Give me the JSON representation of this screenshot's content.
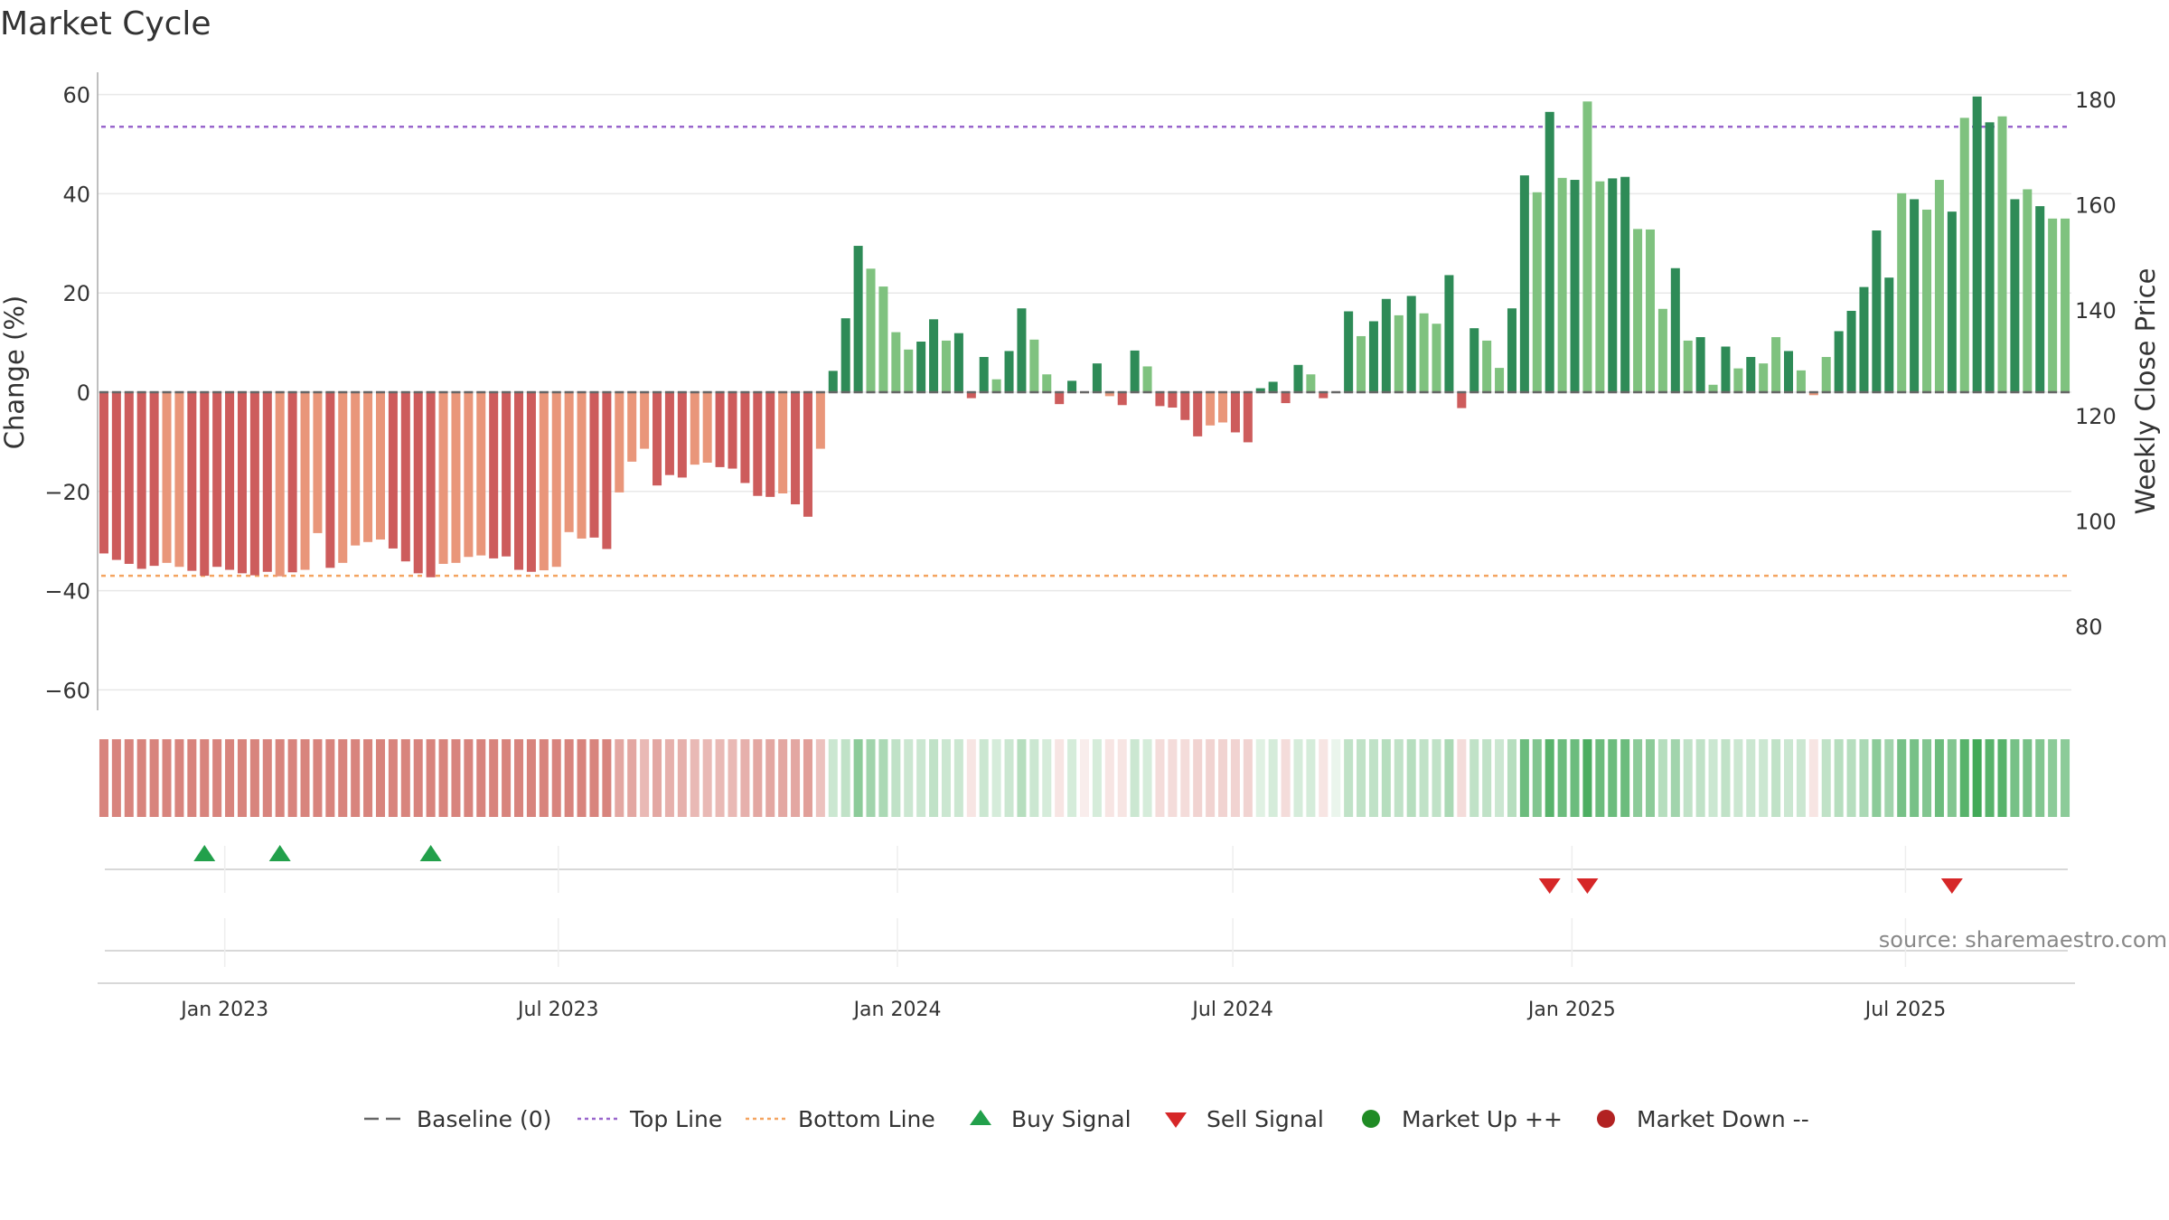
{
  "title": "Market Cycle",
  "source": "source: sharemaestro.com",
  "colors": {
    "pos_dark": "#2e8b57",
    "pos_light": "#7fc27f",
    "neg_dark": "#cd5c5c",
    "neg_light": "#e9967a",
    "top_line": "#9966cc",
    "bottom_line": "#f4a460",
    "baseline": "#666666",
    "buy": "#22a04b",
    "sell": "#d62728",
    "market_up": "#1f8b24",
    "market_down": "#b22222",
    "grid": "#e8e8e8",
    "axis": "#aaaaaa"
  },
  "legend": [
    {
      "key": "baseline",
      "label": "Baseline (0)",
      "icon": "dash-line-icon"
    },
    {
      "key": "top",
      "label": "Top Line",
      "icon": "dotted-purple-line-icon"
    },
    {
      "key": "bottom",
      "label": "Bottom Line",
      "icon": "dotted-orange-line-icon"
    },
    {
      "key": "buy",
      "label": "Buy Signal",
      "icon": "triangle-up-icon"
    },
    {
      "key": "sell",
      "label": "Sell Signal",
      "icon": "triangle-down-icon"
    },
    {
      "key": "up",
      "label": "Market Up ++",
      "icon": "green-dot-icon"
    },
    {
      "key": "down",
      "label": "Market Down --",
      "icon": "red-dot-icon"
    }
  ],
  "chart_data": {
    "type": "bar",
    "title": "Market Cycle",
    "ylabel": "Change (%)",
    "y2label": "Weekly Close Price",
    "ylim": [
      -60,
      60
    ],
    "yticks": [
      60,
      40,
      20,
      0,
      -20,
      -40,
      -60
    ],
    "yticklabels": [
      "60",
      "40",
      "20",
      "0",
      "−20",
      "−40",
      "−60"
    ],
    "y2lim": [
      70,
      180
    ],
    "y2ticks": [
      180,
      160,
      140,
      120,
      100,
      80
    ],
    "y2ticklabels": [
      "180",
      "160",
      "140",
      "120",
      "100",
      "80"
    ],
    "top_line": 53.5,
    "bottom_line": -37,
    "x_start": "2022-10-24",
    "week_days": 7,
    "xlim": [
      "2022-10-24",
      "2025-09-29"
    ],
    "xticks": [
      "2023-01-01",
      "2023-07-01",
      "2024-01-01",
      "2024-07-01",
      "2025-01-01",
      "2025-07-01"
    ],
    "xticklabels": [
      "Jan 2023",
      "Jul 2023",
      "Jan 2024",
      "Jul 2024",
      "Jan 2025",
      "Jul 2025"
    ],
    "grid": true,
    "legend_position": "bottom",
    "values": [
      -32.5,
      -33.8,
      -34.6,
      -35.6,
      -35,
      -34.4,
      -35.2,
      -36,
      -37,
      -35.2,
      -35.8,
      -36.5,
      -36.9,
      -36.2,
      -37.1,
      -36.3,
      -35.8,
      -28.4,
      -35.4,
      -34.4,
      -30.9,
      -30.2,
      -29.7,
      -31.5,
      -34.1,
      -36.5,
      -37.3,
      -34.6,
      -34.4,
      -33.2,
      -32.9,
      -33.5,
      -33.1,
      -35.8,
      -36.2,
      -35.9,
      -35.2,
      -28.2,
      -29.5,
      -29.3,
      -31.6,
      -20.2,
      -14,
      -11.4,
      -18.8,
      -16.7,
      -17.2,
      -14.6,
      -14.2,
      -15.1,
      -15.4,
      -18.3,
      -20.9,
      -21.1,
      -20.4,
      -22.6,
      -25.1,
      -11.4,
      4.3,
      14.9,
      29.5,
      24.9,
      21.3,
      12.1,
      8.6,
      10.2,
      14.7,
      10.4,
      11.9,
      -1.2,
      7.1,
      2.6,
      8.3,
      16.9,
      10.6,
      3.6,
      -2.4,
      2.3,
      -0.2,
      5.8,
      -0.8,
      -2.6,
      8.4,
      5.2,
      -2.8,
      -3.1,
      -5.6,
      -8.9,
      -6.7,
      -6.1,
      -8.1,
      -10.1,
      0.8,
      2.1,
      -2.2,
      5.5,
      3.6,
      -1.2,
      0,
      16.3,
      11.3,
      14.3,
      18.8,
      15.5,
      19.4,
      15.9,
      13.8,
      23.6,
      -3.2,
      12.9,
      10.4,
      4.9,
      16.9,
      43.7,
      40.3,
      56.5,
      43.2,
      42.8,
      58.6,
      42.5,
      43.1,
      43.4,
      32.9,
      32.8,
      16.8,
      25,
      10.4,
      11.1,
      1.5,
      9.2,
      4.8,
      7.1,
      5.8,
      11.1,
      8.3,
      4.4,
      -0.6,
      7.1,
      12.3,
      16.4,
      21.2,
      32.6,
      23.1,
      40.1,
      38.9,
      36.8,
      42.8,
      36.4,
      55.3,
      59.6,
      54.4,
      55.6,
      38.9,
      40.9,
      37.5,
      35,
      35
    ],
    "shade": [
      "d",
      "d",
      "d",
      "d",
      "d",
      "l",
      "l",
      "d",
      "d",
      "d",
      "d",
      "d",
      "d",
      "d",
      "l",
      "d",
      "l",
      "l",
      "d",
      "l",
      "l",
      "l",
      "l",
      "d",
      "d",
      "d",
      "d",
      "l",
      "l",
      "l",
      "l",
      "d",
      "d",
      "d",
      "d",
      "l",
      "l",
      "l",
      "l",
      "d",
      "d",
      "l",
      "l",
      "l",
      "d",
      "d",
      "d",
      "l",
      "l",
      "d",
      "d",
      "d",
      "d",
      "d",
      "l",
      "d",
      "d",
      "l",
      "d",
      "d",
      "d",
      "l",
      "l",
      "l",
      "l",
      "d",
      "d",
      "l",
      "d",
      "d",
      "d",
      "l",
      "d",
      "d",
      "l",
      "l",
      "d",
      "d",
      "l",
      "d",
      "l",
      "d",
      "d",
      "l",
      "d",
      "d",
      "d",
      "d",
      "l",
      "l",
      "d",
      "d",
      "d",
      "d",
      "d",
      "d",
      "l",
      "d",
      "d",
      "d",
      "l",
      "d",
      "d",
      "l",
      "d",
      "l",
      "l",
      "d",
      "d",
      "d",
      "l",
      "l",
      "d",
      "d",
      "l",
      "d",
      "l",
      "d",
      "l",
      "l",
      "d",
      "d",
      "l",
      "l",
      "l",
      "d",
      "l",
      "d",
      "l",
      "d",
      "l",
      "d",
      "l",
      "l",
      "d",
      "l",
      "l",
      "l",
      "d",
      "d",
      "d",
      "d",
      "d",
      "l",
      "d",
      "l",
      "l",
      "d",
      "l",
      "d",
      "d",
      "l",
      "d",
      "l",
      "d",
      "l",
      "l",
      "d"
    ],
    "heat_levels": [
      0.7,
      0.7,
      0.7,
      0.7,
      0.7,
      0.7,
      0.7,
      0.7,
      0.7,
      0.7,
      0.7,
      0.7,
      0.7,
      0.7,
      0.7,
      0.7,
      0.7,
      0.7,
      0.7,
      0.7,
      0.7,
      0.7,
      0.7,
      0.7,
      0.7,
      0.7,
      0.7,
      0.7,
      0.7,
      0.7,
      0.7,
      0.7,
      0.7,
      0.7,
      0.7,
      0.7,
      0.7,
      0.7,
      0.7,
      0.7,
      0.7,
      0.5,
      0.5,
      0.4,
      0.5,
      0.45,
      0.45,
      0.4,
      0.4,
      0.4,
      0.4,
      0.45,
      0.5,
      0.5,
      0.5,
      0.5,
      0.55,
      0.35,
      0.25,
      0.3,
      0.55,
      0.45,
      0.4,
      0.3,
      0.25,
      0.25,
      0.3,
      0.25,
      0.25,
      0.15,
      0.25,
      0.2,
      0.25,
      0.35,
      0.25,
      0.2,
      0.15,
      0.2,
      0.1,
      0.2,
      0.15,
      0.15,
      0.25,
      0.2,
      0.2,
      0.2,
      0.2,
      0.25,
      0.25,
      0.25,
      0.25,
      0.25,
      0.15,
      0.2,
      0.2,
      0.2,
      0.2,
      0.15,
      0.1,
      0.3,
      0.3,
      0.3,
      0.35,
      0.3,
      0.35,
      0.3,
      0.3,
      0.4,
      0.2,
      0.3,
      0.3,
      0.25,
      0.35,
      0.7,
      0.6,
      0.8,
      0.7,
      0.7,
      0.85,
      0.7,
      0.7,
      0.7,
      0.55,
      0.55,
      0.35,
      0.45,
      0.3,
      0.3,
      0.25,
      0.3,
      0.25,
      0.25,
      0.25,
      0.3,
      0.25,
      0.25,
      0.15,
      0.3,
      0.35,
      0.35,
      0.4,
      0.55,
      0.45,
      0.65,
      0.65,
      0.6,
      0.7,
      0.6,
      0.8,
      0.9,
      0.8,
      0.8,
      0.65,
      0.65,
      0.6,
      0.55,
      0.55
    ],
    "buy_signals": [
      8,
      14,
      26
    ],
    "sell_signals": [
      115,
      118,
      147
    ]
  }
}
